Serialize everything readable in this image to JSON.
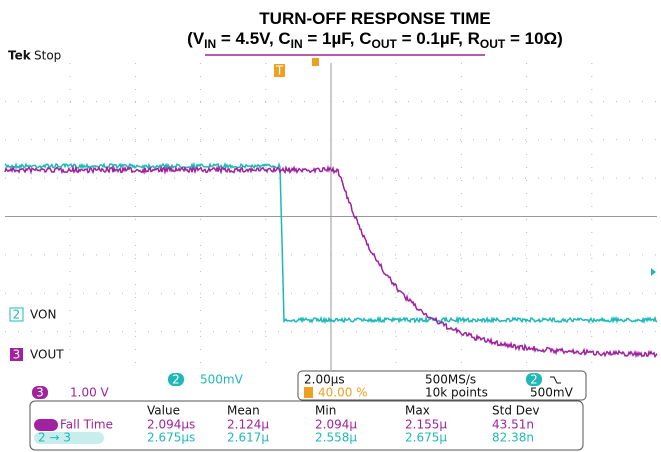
{
  "header": {
    "title": "TURN-OFF RESPONSE TIME",
    "subtitle_parts": [
      {
        "t": "(V"
      },
      {
        "s": "IN"
      },
      {
        "t": " = 4.5V, C"
      },
      {
        "s": "IN"
      },
      {
        "t": " = 1µF, C"
      },
      {
        "s": "OUT"
      },
      {
        "t": " = 0.1µF, R"
      },
      {
        "s": "OUT"
      },
      {
        "t": " = 10Ω)"
      }
    ]
  },
  "status": {
    "brand": "Tek",
    "state": "Stop"
  },
  "channels": [
    {
      "number": "2",
      "label": "VON",
      "scale": "500mV"
    },
    {
      "number": "3",
      "label": "VOUT",
      "scale": "1.00 V"
    }
  ],
  "timebase": {
    "horizontal": "2.00µs",
    "sample_rate": "500MS/s",
    "trigger_position": "40.00 %",
    "record_length": "10k points",
    "trigger_channel": "2",
    "trigger_level": "500mV"
  },
  "measurements": {
    "headers": [
      "Value",
      "Mean",
      "Min",
      "Max",
      "Std Dev"
    ],
    "rows": [
      {
        "label": "Fall Time",
        "cells": [
          "2.094µs",
          "2.124µ",
          "2.094µ",
          "2.155µ",
          "43.51n"
        ]
      },
      {
        "label": "2 → 3",
        "cells": [
          "2.675µs",
          "2.617µ",
          "2.558µ",
          "2.675µ",
          "82.38n"
        ]
      }
    ]
  }
}
